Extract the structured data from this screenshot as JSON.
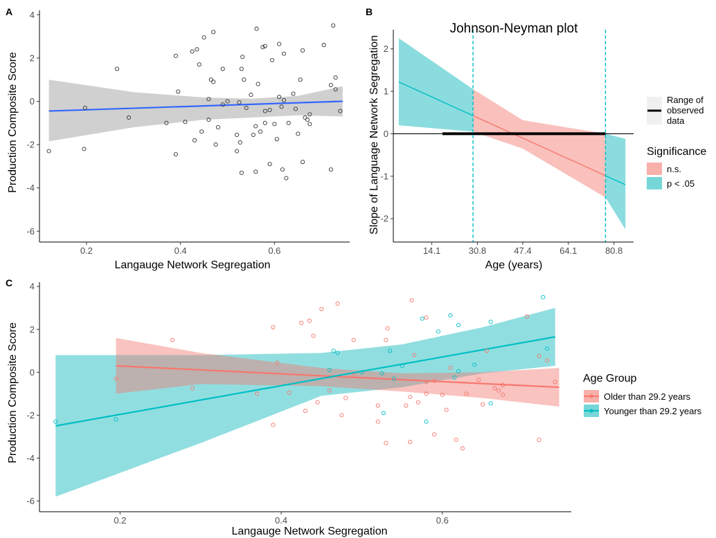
{
  "colors": {
    "older": "#f8766d",
    "younger": "#00bfc4",
    "ns_fill": "#f8b0ab",
    "sig_fill": "#76d6d8",
    "lm_line": "#3366ff",
    "ci_grey": "#c8c8c8"
  },
  "chart_data": [
    {
      "panel": "A",
      "type": "scatter",
      "xlabel": "Langauge Network Segregation",
      "ylabel": "Production Composite Score",
      "xlim": [
        0.1,
        0.76
      ],
      "ylim": [
        -6.5,
        4.2
      ],
      "xticks": [
        0.2,
        0.4,
        0.6
      ],
      "xtick_labels": [
        "0.2",
        "0.4",
        "0.6"
      ],
      "yticks": [
        4,
        2,
        0,
        -2,
        -4,
        -6
      ],
      "ytick_labels": [
        "4",
        "2",
        "0",
        "-2",
        "-4",
        "-6"
      ],
      "points": [
        [
          0.12,
          -2.3
        ],
        [
          0.195,
          -2.2
        ],
        [
          0.197,
          -0.3
        ],
        [
          0.265,
          1.5
        ],
        [
          0.29,
          -0.75
        ],
        [
          0.37,
          -1.0
        ],
        [
          0.39,
          -2.45
        ],
        [
          0.39,
          2.1
        ],
        [
          0.395,
          0.45
        ],
        [
          0.41,
          -0.95
        ],
        [
          0.425,
          2.3
        ],
        [
          0.43,
          -1.8
        ],
        [
          0.435,
          2.4
        ],
        [
          0.44,
          1.7
        ],
        [
          0.445,
          -1.4
        ],
        [
          0.45,
          2.95
        ],
        [
          0.46,
          0.1
        ],
        [
          0.46,
          -0.85
        ],
        [
          0.465,
          1.0
        ],
        [
          0.47,
          3.2
        ],
        [
          0.47,
          0.9
        ],
        [
          0.475,
          -2.0
        ],
        [
          0.48,
          -1.2
        ],
        [
          0.49,
          1.5
        ],
        [
          0.49,
          -0.15
        ],
        [
          0.5,
          0.0
        ],
        [
          0.52,
          -1.55
        ],
        [
          0.52,
          -2.3
        ],
        [
          0.525,
          -0.05
        ],
        [
          0.527,
          -1.9
        ],
        [
          0.53,
          1.5
        ],
        [
          0.53,
          -3.3
        ],
        [
          0.532,
          2.05
        ],
        [
          0.535,
          1.0
        ],
        [
          0.54,
          -0.3
        ],
        [
          0.55,
          0.3
        ],
        [
          0.555,
          -1.55
        ],
        [
          0.56,
          -1.15
        ],
        [
          0.56,
          -3.25
        ],
        [
          0.562,
          3.35
        ],
        [
          0.565,
          0.8
        ],
        [
          0.57,
          -1.4
        ],
        [
          0.575,
          2.5
        ],
        [
          0.58,
          -0.45
        ],
        [
          0.58,
          2.55
        ],
        [
          0.58,
          -1.0
        ],
        [
          0.59,
          -2.9
        ],
        [
          0.59,
          -0.4
        ],
        [
          0.595,
          1.9
        ],
        [
          0.6,
          -1.05
        ],
        [
          0.605,
          -1.75
        ],
        [
          0.61,
          0.2
        ],
        [
          0.61,
          2.65
        ],
        [
          0.615,
          -0.25
        ],
        [
          0.617,
          -3.15
        ],
        [
          0.62,
          2.2
        ],
        [
          0.62,
          0.05
        ],
        [
          0.625,
          -3.55
        ],
        [
          0.63,
          -1.0
        ],
        [
          0.64,
          0.35
        ],
        [
          0.645,
          -0.35
        ],
        [
          0.65,
          -1.5
        ],
        [
          0.655,
          1.0
        ],
        [
          0.66,
          2.35
        ],
        [
          0.66,
          -2.8
        ],
        [
          0.665,
          -0.75
        ],
        [
          0.67,
          -0.85
        ],
        [
          0.675,
          -0.6
        ],
        [
          0.675,
          -1.05
        ],
        [
          0.72,
          -3.15
        ],
        [
          0.72,
          0.75
        ],
        [
          0.725,
          3.5
        ],
        [
          0.73,
          0.55
        ],
        [
          0.73,
          1.1
        ],
        [
          0.74,
          -0.45
        ],
        [
          0.705,
          2.6
        ]
      ],
      "fit_line": {
        "x": [
          0.12,
          0.745
        ],
        "y": [
          -0.45,
          0.0
        ]
      },
      "ci_band": {
        "x": [
          0.12,
          0.3,
          0.45,
          0.55,
          0.65,
          0.745
        ],
        "upper": [
          1.0,
          0.42,
          0.18,
          0.12,
          0.25,
          0.7
        ],
        "lower": [
          -1.85,
          -1.2,
          -0.85,
          -0.75,
          -0.65,
          -0.7
        ]
      }
    },
    {
      "panel": "B",
      "type": "line",
      "title": "Johnson-Neyman plot",
      "xlabel": "Age (years)",
      "ylabel": "Slope of Language Network Segregation",
      "xlim": [
        0,
        88
      ],
      "ylim": [
        -2.55,
        2.45
      ],
      "xticks": [
        14.1,
        30.8,
        47.4,
        64.1,
        80.8
      ],
      "xtick_labels": [
        "14.1",
        "30.8",
        "47.4",
        "64.1",
        "80.8"
      ],
      "yticks": [
        2,
        1,
        0,
        -1,
        -2
      ],
      "ytick_labels": [
        "2",
        "1",
        "0",
        "-1",
        "-2"
      ],
      "slope_line": {
        "x": [
          2,
          85
        ],
        "y": [
          1.22,
          -1.2
        ]
      },
      "ci_upper": {
        "x": [
          2,
          29.2,
          47.4,
          77.7,
          85
        ],
        "y": [
          2.25,
          1.05,
          0.32,
          0.0,
          -0.12
        ]
      },
      "ci_lower": {
        "x": [
          2,
          29.2,
          47.4,
          77.7,
          85
        ],
        "y": [
          0.2,
          0.05,
          -0.35,
          -1.5,
          -2.25
        ]
      },
      "jn_bounds": [
        29.2,
        77.7
      ],
      "observed_range": [
        18.0,
        77.7
      ],
      "legend_range": {
        "title": "Range of observed data"
      },
      "legend_significance": {
        "title": "Significance",
        "entries": [
          "n.s.",
          "p < .05"
        ]
      }
    },
    {
      "panel": "C",
      "type": "scatter",
      "xlabel": "Langauge Network Segregation",
      "ylabel": "Production Composite Score",
      "xlim": [
        0.1,
        0.76
      ],
      "ylim": [
        -6.5,
        4.2
      ],
      "xticks": [
        0.2,
        0.4,
        0.6
      ],
      "xtick_labels": [
        "0.2",
        "0.4",
        "0.6"
      ],
      "yticks": [
        4,
        2,
        0,
        -2,
        -4,
        -6
      ],
      "ytick_labels": [
        "4",
        "2",
        "0",
        "-2",
        "-4",
        "-6"
      ],
      "legend_title": "Age Group",
      "series": [
        {
          "name": "Older than 29.2 years",
          "color_key": "older",
          "points": [
            [
              0.195,
              -0.3
            ],
            [
              0.265,
              1.5
            ],
            [
              0.29,
              -0.75
            ],
            [
              0.37,
              -1.0
            ],
            [
              0.39,
              -2.45
            ],
            [
              0.39,
              2.1
            ],
            [
              0.395,
              0.45
            ],
            [
              0.41,
              -0.95
            ],
            [
              0.425,
              2.3
            ],
            [
              0.43,
              -1.8
            ],
            [
              0.435,
              2.4
            ],
            [
              0.44,
              1.7
            ],
            [
              0.445,
              -1.4
            ],
            [
              0.45,
              2.95
            ],
            [
              0.46,
              -0.85
            ],
            [
              0.47,
              3.2
            ],
            [
              0.475,
              -2.0
            ],
            [
              0.48,
              -1.2
            ],
            [
              0.49,
              1.5
            ],
            [
              0.49,
              -0.15
            ],
            [
              0.52,
              -1.55
            ],
            [
              0.52,
              -2.3
            ],
            [
              0.53,
              1.5
            ],
            [
              0.53,
              -3.3
            ],
            [
              0.532,
              2.05
            ],
            [
              0.555,
              -1.55
            ],
            [
              0.56,
              -1.15
            ],
            [
              0.56,
              -3.25
            ],
            [
              0.562,
              3.35
            ],
            [
              0.565,
              0.8
            ],
            [
              0.57,
              -1.4
            ],
            [
              0.58,
              2.55
            ],
            [
              0.58,
              -0.45
            ],
            [
              0.58,
              -1.0
            ],
            [
              0.59,
              -2.9
            ],
            [
              0.59,
              -0.4
            ],
            [
              0.6,
              -1.05
            ],
            [
              0.605,
              -1.75
            ],
            [
              0.61,
              0.2
            ],
            [
              0.617,
              -3.15
            ],
            [
              0.625,
              -3.55
            ],
            [
              0.63,
              -1.0
            ],
            [
              0.645,
              -0.35
            ],
            [
              0.65,
              -1.5
            ],
            [
              0.655,
              1.0
            ],
            [
              0.665,
              -0.75
            ],
            [
              0.67,
              -0.85
            ],
            [
              0.675,
              -0.6
            ],
            [
              0.675,
              -1.05
            ],
            [
              0.705,
              2.6
            ],
            [
              0.72,
              -3.15
            ],
            [
              0.72,
              0.75
            ],
            [
              0.73,
              0.55
            ],
            [
              0.74,
              -0.45
            ]
          ],
          "fit_line": {
            "x": [
              0.195,
              0.745
            ],
            "y": [
              0.3,
              -0.7
            ]
          },
          "ci_band": {
            "x": [
              0.195,
              0.3,
              0.45,
              0.55,
              0.65,
              0.745
            ],
            "upper": [
              1.6,
              0.9,
              0.2,
              -0.05,
              0.0,
              0.2
            ],
            "lower": [
              -1.0,
              -0.55,
              -0.65,
              -0.9,
              -1.2,
              -1.6
            ]
          }
        },
        {
          "name": "Younger than 29.2 years",
          "color_key": "younger",
          "points": [
            [
              0.12,
              -2.3
            ],
            [
              0.195,
              -2.2
            ],
            [
              0.46,
              0.1
            ],
            [
              0.465,
              1.0
            ],
            [
              0.47,
              0.9
            ],
            [
              0.5,
              0.0
            ],
            [
              0.525,
              -0.05
            ],
            [
              0.527,
              -1.9
            ],
            [
              0.535,
              1.0
            ],
            [
              0.54,
              -0.3
            ],
            [
              0.55,
              0.3
            ],
            [
              0.575,
              2.5
            ],
            [
              0.58,
              -2.3
            ],
            [
              0.595,
              1.9
            ],
            [
              0.61,
              2.65
            ],
            [
              0.615,
              -0.25
            ],
            [
              0.62,
              2.2
            ],
            [
              0.62,
              0.05
            ],
            [
              0.64,
              0.35
            ],
            [
              0.66,
              2.35
            ],
            [
              0.66,
              -1.45
            ],
            [
              0.725,
              3.5
            ],
            [
              0.73,
              1.1
            ]
          ],
          "fit_line": {
            "x": [
              0.12,
              0.74
            ],
            "y": [
              -2.5,
              1.65
            ]
          },
          "ci_band": {
            "x": [
              0.12,
              0.3,
              0.45,
              0.55,
              0.65,
              0.74
            ],
            "upper": [
              0.8,
              0.8,
              0.9,
              1.3,
              2.1,
              3.0
            ],
            "lower": [
              -5.8,
              -3.3,
              -1.1,
              -0.7,
              -0.05,
              0.3
            ]
          }
        }
      ]
    }
  ]
}
